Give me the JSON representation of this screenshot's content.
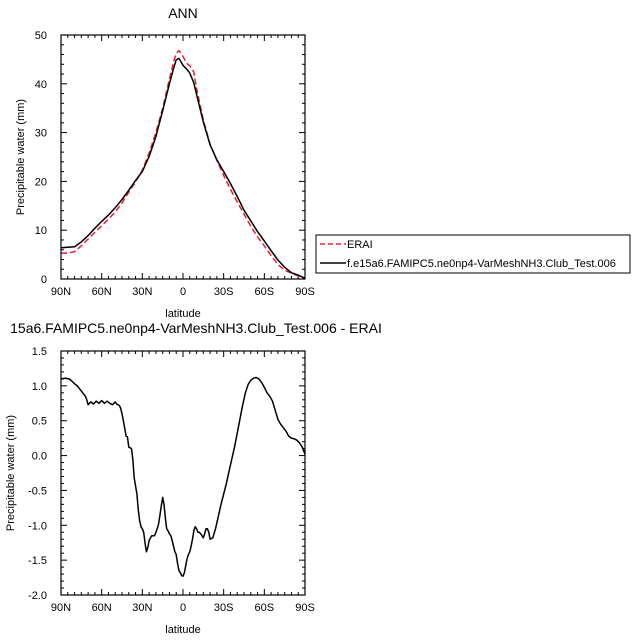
{
  "colors": {
    "erai": "#e8202a",
    "model": "#000000",
    "axis": "#000000",
    "background": "#ffffff"
  },
  "chart_data": [
    {
      "type": "line",
      "title": "ANN",
      "xlabel": "latitude",
      "ylabel": "Precipitable water (mm)",
      "xlim": [
        90,
        -90
      ],
      "ylim": [
        0,
        50
      ],
      "xticks": [
        {
          "value": 90,
          "label": "90N"
        },
        {
          "value": 60,
          "label": "60N"
        },
        {
          "value": 30,
          "label": "30N"
        },
        {
          "value": 0,
          "label": "0"
        },
        {
          "value": -30,
          "label": "30S"
        },
        {
          "value": -60,
          "label": "60S"
        },
        {
          "value": -90,
          "label": "90S"
        }
      ],
      "yticks": [
        0,
        10,
        20,
        30,
        40,
        50
      ],
      "legend_position": "right",
      "series": [
        {
          "name": "ERAI",
          "style": "dashed",
          "color": "#e8202a",
          "x": [
            90,
            85,
            80,
            75,
            70,
            65,
            60,
            55,
            50,
            45,
            40,
            35,
            30,
            25,
            20,
            15,
            10,
            7,
            5,
            3,
            0,
            -3,
            -5,
            -8,
            -10,
            -15,
            -20,
            -25,
            -30,
            -35,
            -40,
            -45,
            -50,
            -55,
            -60,
            -65,
            -70,
            -75,
            -80,
            -85,
            -90
          ],
          "y": [
            5.3,
            5.3,
            5.6,
            6.8,
            8.2,
            9.6,
            10.9,
            12.3,
            13.7,
            15.6,
            17.8,
            19.9,
            22.3,
            25.8,
            30.0,
            35.0,
            41.0,
            44.4,
            46.2,
            46.8,
            45.6,
            44.1,
            43.7,
            42.4,
            39.0,
            32.6,
            27.6,
            24.3,
            21.2,
            18.4,
            15.8,
            13.3,
            10.8,
            8.6,
            6.8,
            4.8,
            3.0,
            1.8,
            1.2,
            0.6,
            0.1
          ]
        },
        {
          "name": "f.e15a6.FAMIPC5.ne0np4-VarMeshNH3.Club_Test.006",
          "style": "solid",
          "color": "#000000",
          "x": [
            90,
            85,
            80,
            75,
            70,
            65,
            60,
            55,
            50,
            45,
            40,
            35,
            30,
            25,
            20,
            15,
            10,
            7,
            5,
            3,
            0,
            -3,
            -5,
            -8,
            -10,
            -15,
            -20,
            -25,
            -30,
            -35,
            -40,
            -45,
            -50,
            -55,
            -60,
            -65,
            -70,
            -75,
            -80,
            -85,
            -90
          ],
          "y": [
            6.4,
            6.5,
            6.6,
            7.6,
            8.9,
            10.4,
            11.8,
            13.1,
            14.6,
            16.3,
            18.2,
            20.2,
            22.0,
            25.1,
            29.2,
            34.5,
            40.0,
            43.1,
            44.9,
            45.2,
            43.8,
            42.9,
            42.2,
            40.2,
            37.8,
            32.2,
            27.5,
            24.4,
            22.0,
            19.6,
            16.9,
            14.1,
            11.9,
            9.7,
            7.8,
            5.8,
            3.9,
            2.4,
            1.3,
            0.8,
            0.15
          ]
        }
      ]
    },
    {
      "type": "line",
      "title": "15a6.FAMIPC5.ne0np4-VarMeshNH3.Club_Test.006 - ERAI",
      "xlabel": "latitude",
      "ylabel": "Precipitable water (mm)",
      "xlim": [
        90,
        -90
      ],
      "ylim": [
        -2.0,
        1.5
      ],
      "xticks": [
        {
          "value": 90,
          "label": "90N"
        },
        {
          "value": 60,
          "label": "60N"
        },
        {
          "value": 30,
          "label": "30N"
        },
        {
          "value": 0,
          "label": "0"
        },
        {
          "value": -30,
          "label": "30S"
        },
        {
          "value": -60,
          "label": "60S"
        },
        {
          "value": -90,
          "label": "90S"
        }
      ],
      "yticks": [
        "-2.0",
        "-1.5",
        "-1.0",
        "-0.5",
        "0.0",
        "0.5",
        "1.0",
        "1.5"
      ],
      "series": [
        {
          "style": "solid",
          "color": "#000000",
          "x": [
            90,
            87,
            84,
            82,
            80,
            78,
            76,
            74,
            72,
            71,
            70,
            68,
            66,
            64,
            62,
            60,
            58,
            56,
            54,
            52,
            50,
            49,
            48,
            47,
            46,
            45,
            44,
            42,
            41,
            40,
            38,
            37,
            36,
            34,
            33,
            32,
            31,
            30,
            29,
            28,
            27,
            26,
            25,
            24,
            23,
            21,
            20,
            19,
            18,
            17,
            16,
            15,
            14,
            13,
            12,
            11,
            10,
            9,
            8,
            7,
            6,
            5,
            4,
            3,
            2,
            1,
            0,
            -1,
            -2,
            -3,
            -4,
            -5,
            -6,
            -7,
            -8,
            -9,
            -10,
            -11,
            -12,
            -13,
            -14,
            -15,
            -16,
            -17,
            -18,
            -19,
            -20,
            -22,
            -24,
            -26,
            -28,
            -30,
            -32,
            -34,
            -36,
            -38,
            -40,
            -42,
            -44,
            -46,
            -48,
            -50,
            -52,
            -54,
            -56,
            -58,
            -60,
            -62,
            -64,
            -66,
            -68,
            -70,
            -72,
            -74,
            -76,
            -78,
            -80,
            -82,
            -84,
            -86,
            -88,
            -90
          ],
          "y": [
            1.1,
            1.11,
            1.1,
            1.07,
            1.03,
            1.0,
            0.95,
            0.9,
            0.85,
            0.8,
            0.73,
            0.77,
            0.74,
            0.78,
            0.75,
            0.79,
            0.75,
            0.78,
            0.75,
            0.73,
            0.77,
            0.74,
            0.73,
            0.72,
            0.68,
            0.6,
            0.5,
            0.28,
            0.27,
            0.12,
            0.1,
            -0.05,
            -0.32,
            -0.55,
            -0.78,
            -0.93,
            -1.02,
            -1.05,
            -1.1,
            -1.25,
            -1.38,
            -1.32,
            -1.22,
            -1.18,
            -1.15,
            -1.15,
            -1.1,
            -1.05,
            -0.98,
            -0.85,
            -0.72,
            -0.6,
            -0.7,
            -0.9,
            -1.05,
            -1.08,
            -1.12,
            -1.15,
            -1.22,
            -1.3,
            -1.38,
            -1.42,
            -1.55,
            -1.65,
            -1.68,
            -1.72,
            -1.73,
            -1.68,
            -1.58,
            -1.48,
            -1.42,
            -1.38,
            -1.3,
            -1.2,
            -1.08,
            -1.02,
            -1.05,
            -1.1,
            -1.1,
            -1.12,
            -1.15,
            -1.18,
            -1.12,
            -1.05,
            -1.05,
            -1.1,
            -1.2,
            -1.18,
            -1.05,
            -0.88,
            -0.7,
            -0.55,
            -0.4,
            -0.22,
            -0.05,
            0.12,
            0.32,
            0.52,
            0.72,
            0.9,
            1.02,
            1.08,
            1.11,
            1.12,
            1.1,
            1.05,
            0.98,
            0.9,
            0.85,
            0.78,
            0.65,
            0.52,
            0.45,
            0.4,
            0.35,
            0.28,
            0.25,
            0.24,
            0.22,
            0.18,
            0.12,
            0.02
          ]
        }
      ]
    }
  ]
}
